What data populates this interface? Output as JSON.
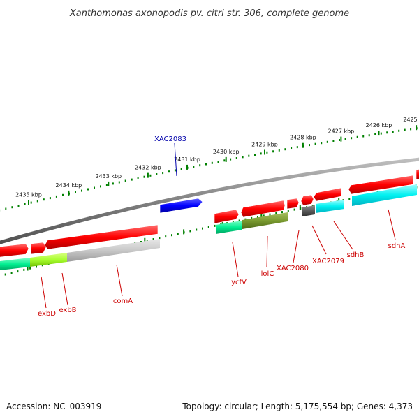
{
  "title": "Xanthomonas axonopodis pv. citri str. 306, complete genome",
  "footer": {
    "accession": "Accession: NC_003919",
    "summary": "Topology: circular; Length: 5,175,554 bp; Genes: 4,373"
  },
  "ruler": {
    "ticks": [
      {
        "label": "2435 kbp"
      },
      {
        "label": "2434 kbp"
      },
      {
        "label": "2433 kbp"
      },
      {
        "label": "2432 kbp"
      },
      {
        "label": "2431 kbp"
      },
      {
        "label": "2430 kbp"
      },
      {
        "label": "2429 kbp"
      },
      {
        "label": "2428 kbp"
      },
      {
        "label": "2427 kbp"
      },
      {
        "label": "2426 kbp"
      },
      {
        "label": "2425 kbp"
      }
    ]
  },
  "colors": {
    "forward_gene": "#ff0000",
    "reverse_gene": "#0000ff",
    "backbone": "#808080",
    "ruler": "#008000",
    "label_forward": "#cc0000",
    "label_reverse": "#0000aa"
  },
  "labels": [
    {
      "id": "xac2083",
      "text": "XAC2083",
      "strand": "reverse"
    },
    {
      "id": "exbd",
      "text": "exbD",
      "strand": "forward"
    },
    {
      "id": "exbb",
      "text": "exbB",
      "strand": "forward"
    },
    {
      "id": "coma",
      "text": "comA",
      "strand": "forward"
    },
    {
      "id": "ycfv",
      "text": "ycfV",
      "strand": "forward"
    },
    {
      "id": "lolc",
      "text": "lolC",
      "strand": "forward"
    },
    {
      "id": "xac2080",
      "text": "XAC2080",
      "strand": "forward"
    },
    {
      "id": "xac2079",
      "text": "XAC2079",
      "strand": "forward"
    },
    {
      "id": "sdhb",
      "text": "sdhB",
      "strand": "forward"
    },
    {
      "id": "sdha",
      "text": "sdhA",
      "strand": "forward"
    }
  ]
}
